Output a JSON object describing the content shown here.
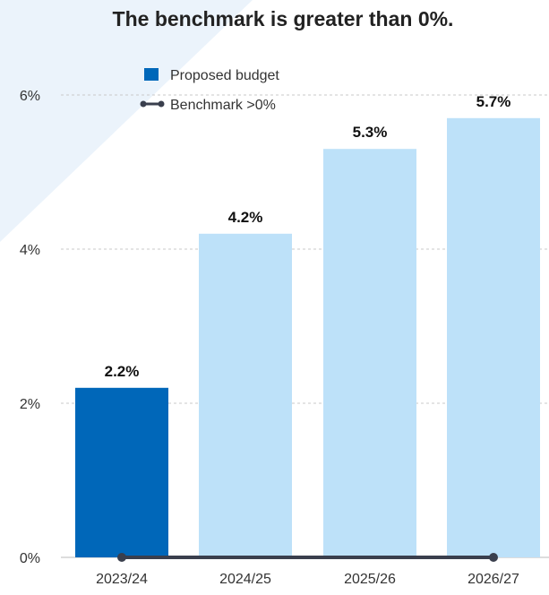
{
  "chart_data": {
    "type": "bar",
    "title": "The benchmark is greater than 0%.",
    "categories": [
      "2023/24",
      "2024/25",
      "2025/26",
      "2026/27"
    ],
    "series": [
      {
        "name": "Proposed budget",
        "values": [
          2.2,
          4.2,
          5.3,
          5.7
        ],
        "data_labels": [
          "2.2%",
          "4.2%",
          "5.3%",
          "5.7%"
        ],
        "colors": [
          "#0067b9",
          "#bde1f9",
          "#bde1f9",
          "#bde1f9"
        ]
      },
      {
        "name": "Benchmark >0%",
        "type": "line",
        "values": [
          0,
          0,
          0,
          0
        ],
        "color": "#3a3f4d"
      }
    ],
    "y_ticks": [
      0,
      2,
      4,
      6
    ],
    "y_tick_labels": [
      "0%",
      "2%",
      "4%",
      "6%"
    ],
    "ylim": [
      0,
      6
    ],
    "grid": true,
    "legend_position": "top-left",
    "background_shape_color": "#ebf3fb"
  }
}
